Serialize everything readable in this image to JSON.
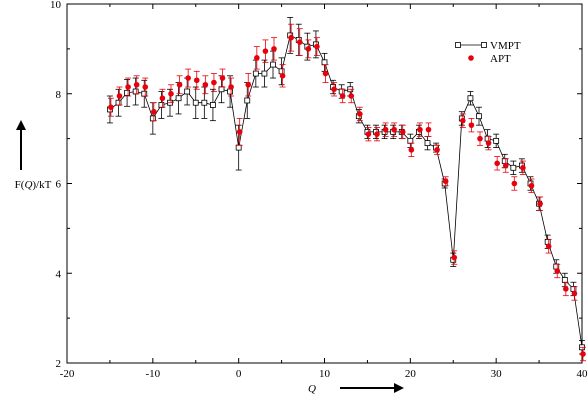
{
  "chart_data": {
    "type": "line",
    "title": "",
    "xlabel": "Q",
    "ylabel": "F(Q)/kT",
    "xlim": [
      -20,
      40
    ],
    "ylim": [
      2,
      10
    ],
    "x_ticks": [
      -20,
      -10,
      0,
      10,
      20,
      30,
      40
    ],
    "y_ticks": [
      2,
      4,
      6,
      8,
      10
    ],
    "grid": false,
    "legend_position": "top-right",
    "series": [
      {
        "name": "VMPT",
        "style": "black line with open squares and error bars",
        "color": "#000000",
        "x": [
          -15,
          -14,
          -13,
          -12,
          -11,
          -10,
          -9,
          -8,
          -7,
          -6,
          -5,
          -4,
          -3,
          -2,
          -1,
          0,
          1,
          2,
          3,
          4,
          5,
          6,
          7,
          8,
          9,
          10,
          11,
          12,
          13,
          14,
          15,
          16,
          17,
          18,
          19,
          20,
          21,
          22,
          23,
          24,
          25,
          26,
          27,
          28,
          29,
          30,
          31,
          32,
          33,
          34,
          35,
          36,
          37,
          38,
          39,
          40
        ],
        "y": [
          7.65,
          7.8,
          8.02,
          8.05,
          8.0,
          7.45,
          7.75,
          7.8,
          7.9,
          8.05,
          7.8,
          7.8,
          7.75,
          8.1,
          8.05,
          6.8,
          7.85,
          8.45,
          8.45,
          8.65,
          8.5,
          9.3,
          9.2,
          9.05,
          9.1,
          8.7,
          8.15,
          8.05,
          8.1,
          7.5,
          7.15,
          7.15,
          7.15,
          7.15,
          7.15,
          6.95,
          7.15,
          6.9,
          6.8,
          6.0,
          4.3,
          7.45,
          7.9,
          7.5,
          7.0,
          6.95,
          6.5,
          6.35,
          6.4,
          6.0,
          5.55,
          4.7,
          4.15,
          3.85,
          3.65,
          2.35
        ],
        "err": [
          0.3,
          0.3,
          0.3,
          0.3,
          0.3,
          0.35,
          0.3,
          0.3,
          0.35,
          0.3,
          0.35,
          0.35,
          0.35,
          0.3,
          0.35,
          0.5,
          0.4,
          0.3,
          0.3,
          0.3,
          0.3,
          0.4,
          0.35,
          0.3,
          0.3,
          0.2,
          0.15,
          0.15,
          0.15,
          0.15,
          0.15,
          0.15,
          0.15,
          0.15,
          0.15,
          0.15,
          0.15,
          0.15,
          0.1,
          0.1,
          0.15,
          0.15,
          0.15,
          0.2,
          0.2,
          0.15,
          0.15,
          0.15,
          0.15,
          0.15,
          0.15,
          0.15,
          0.15,
          0.15,
          0.15,
          0.15
        ]
      },
      {
        "name": "APT",
        "style": "red filled circles with error bars",
        "color": "#e8000b",
        "x": [
          -15,
          -14,
          -13,
          -12,
          -11,
          -10,
          -9,
          -8,
          -7,
          -6,
          -5,
          -4,
          -3,
          -2,
          -1,
          0,
          1,
          2,
          3,
          4,
          5,
          6,
          7,
          8,
          9,
          10,
          11,
          12,
          13,
          14,
          15,
          16,
          17,
          18,
          19,
          20,
          21,
          22,
          23,
          24,
          25,
          26,
          27,
          28,
          29,
          30,
          31,
          32,
          33,
          34,
          35,
          36,
          37,
          38,
          39,
          40
        ],
        "y": [
          7.7,
          7.95,
          8.15,
          8.2,
          8.15,
          7.6,
          7.9,
          8.0,
          8.2,
          8.35,
          8.3,
          8.2,
          8.25,
          8.35,
          8.15,
          7.15,
          8.2,
          8.8,
          8.95,
          9.0,
          8.4,
          9.25,
          9.15,
          9.0,
          9.05,
          8.45,
          8.1,
          7.95,
          7.95,
          7.55,
          7.1,
          7.1,
          7.2,
          7.2,
          7.15,
          6.75,
          7.2,
          7.2,
          6.75,
          6.05,
          4.35,
          7.4,
          7.3,
          7.0,
          6.9,
          6.45,
          6.4,
          6.0,
          6.35,
          5.95,
          5.55,
          4.6,
          4.05,
          3.65,
          3.55,
          2.2
        ],
        "err": [
          0.2,
          0.2,
          0.2,
          0.2,
          0.2,
          0.2,
          0.2,
          0.2,
          0.2,
          0.2,
          0.2,
          0.2,
          0.2,
          0.2,
          0.2,
          0.3,
          0.25,
          0.25,
          0.25,
          0.25,
          0.25,
          0.3,
          0.3,
          0.2,
          0.2,
          0.2,
          0.15,
          0.15,
          0.15,
          0.15,
          0.15,
          0.15,
          0.15,
          0.15,
          0.15,
          0.15,
          0.15,
          0.15,
          0.1,
          0.1,
          0.15,
          0.15,
          0.15,
          0.15,
          0.15,
          0.15,
          0.15,
          0.15,
          0.15,
          0.15,
          0.15,
          0.15,
          0.15,
          0.15,
          0.15,
          0.15
        ]
      }
    ]
  }
}
